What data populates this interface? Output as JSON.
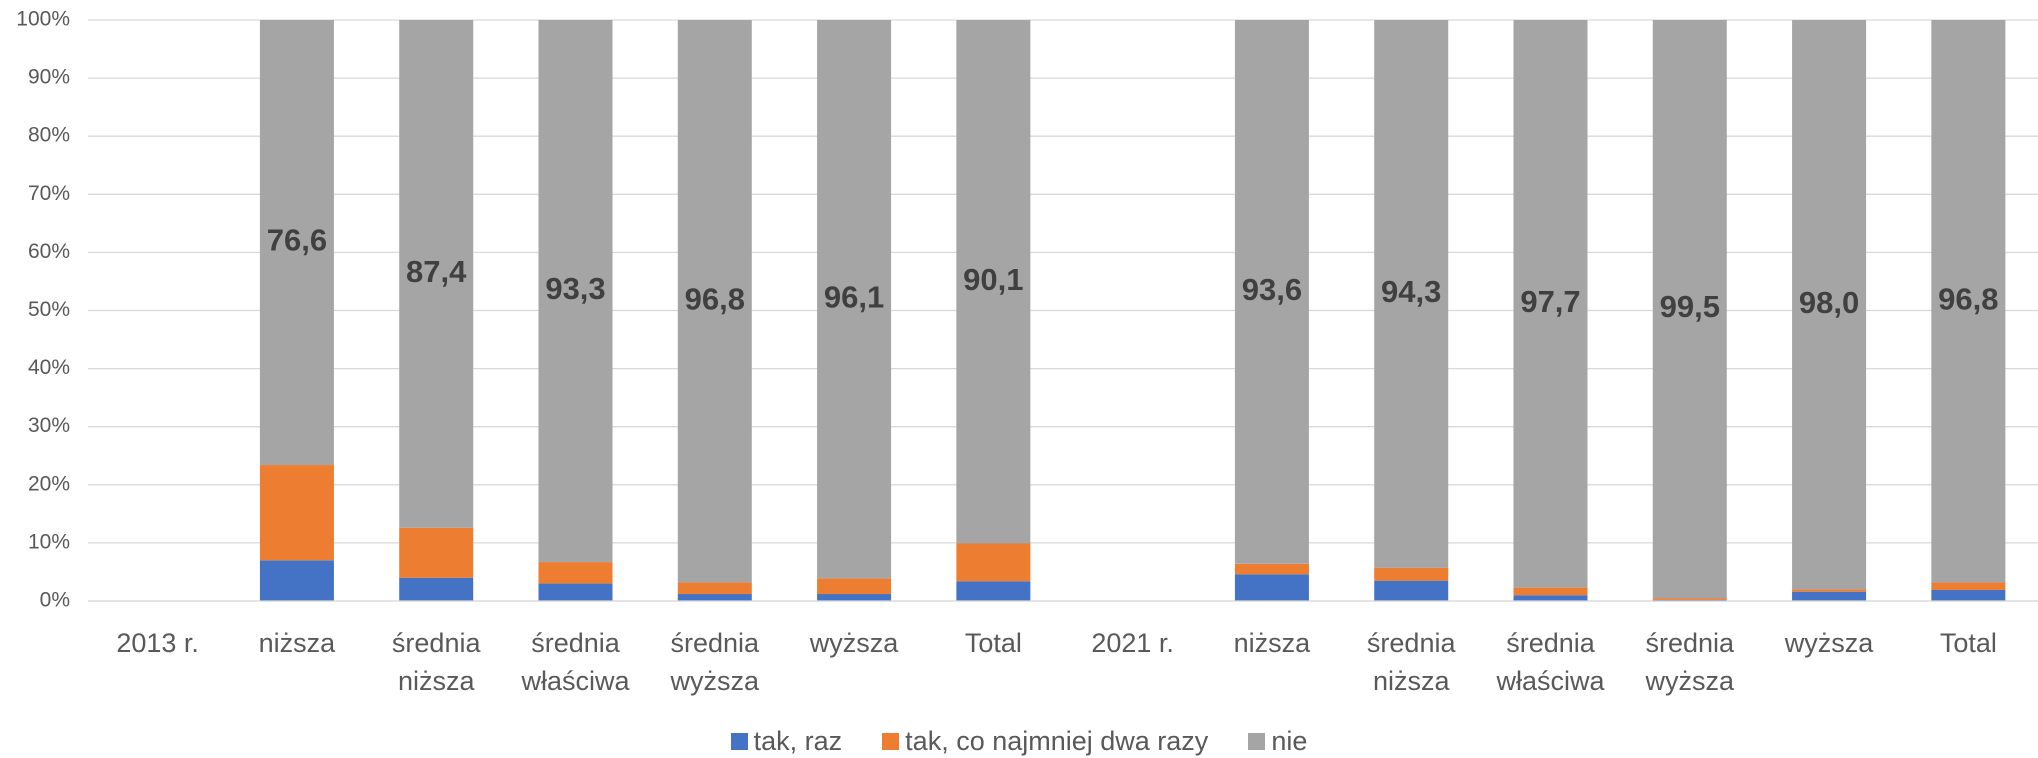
{
  "chart_data": {
    "type": "stacked_bar",
    "categories": [
      "2013 r.",
      "niższa",
      "średnia niższa",
      "średnia właściwa",
      "średnia wyższa",
      "wyższa",
      "Total",
      "2021 r.",
      "niższa",
      "średnia niższa",
      "średnia właściwa",
      "średnia wyższa",
      "wyższa",
      "Total"
    ],
    "series": [
      {
        "name": "tak, raz",
        "color": "#4472c4",
        "values": [
          null,
          7.0,
          4.0,
          3.0,
          1.2,
          1.2,
          3.4,
          null,
          4.6,
          3.5,
          1.0,
          0.2,
          1.6,
          1.9
        ]
      },
      {
        "name": "tak, co najmniej dwa razy",
        "color": "#ed7d31",
        "values": [
          null,
          16.4,
          8.6,
          3.7,
          2.0,
          2.7,
          6.5,
          null,
          1.8,
          2.2,
          1.3,
          0.3,
          0.4,
          1.3
        ]
      },
      {
        "name": "nie",
        "color": "#a5a5a5",
        "values": [
          null,
          76.6,
          87.4,
          93.3,
          96.8,
          96.1,
          90.1,
          null,
          93.6,
          94.3,
          97.7,
          99.5,
          98.0,
          96.8
        ],
        "value_labels": [
          null,
          "76,6",
          "87,4",
          "93,3",
          "96,8",
          "96,1",
          "90,1",
          null,
          "93,6",
          "94,3",
          "97,7",
          "99,5",
          "98,0",
          "96,8"
        ]
      }
    ],
    "ylim": [
      0,
      100
    ],
    "yticks": [
      {
        "value": 0,
        "label": "0%"
      },
      {
        "value": 10,
        "label": "10%"
      },
      {
        "value": 20,
        "label": "20%"
      },
      {
        "value": 30,
        "label": "30%"
      },
      {
        "value": 40,
        "label": "40%"
      },
      {
        "value": 50,
        "label": "50%"
      },
      {
        "value": 60,
        "label": "60%"
      },
      {
        "value": 70,
        "label": "70%"
      },
      {
        "value": 80,
        "label": "80%"
      },
      {
        "value": 90,
        "label": "90%"
      },
      {
        "value": 100,
        "label": "100%"
      }
    ],
    "grid": true,
    "legend": "bottom"
  }
}
